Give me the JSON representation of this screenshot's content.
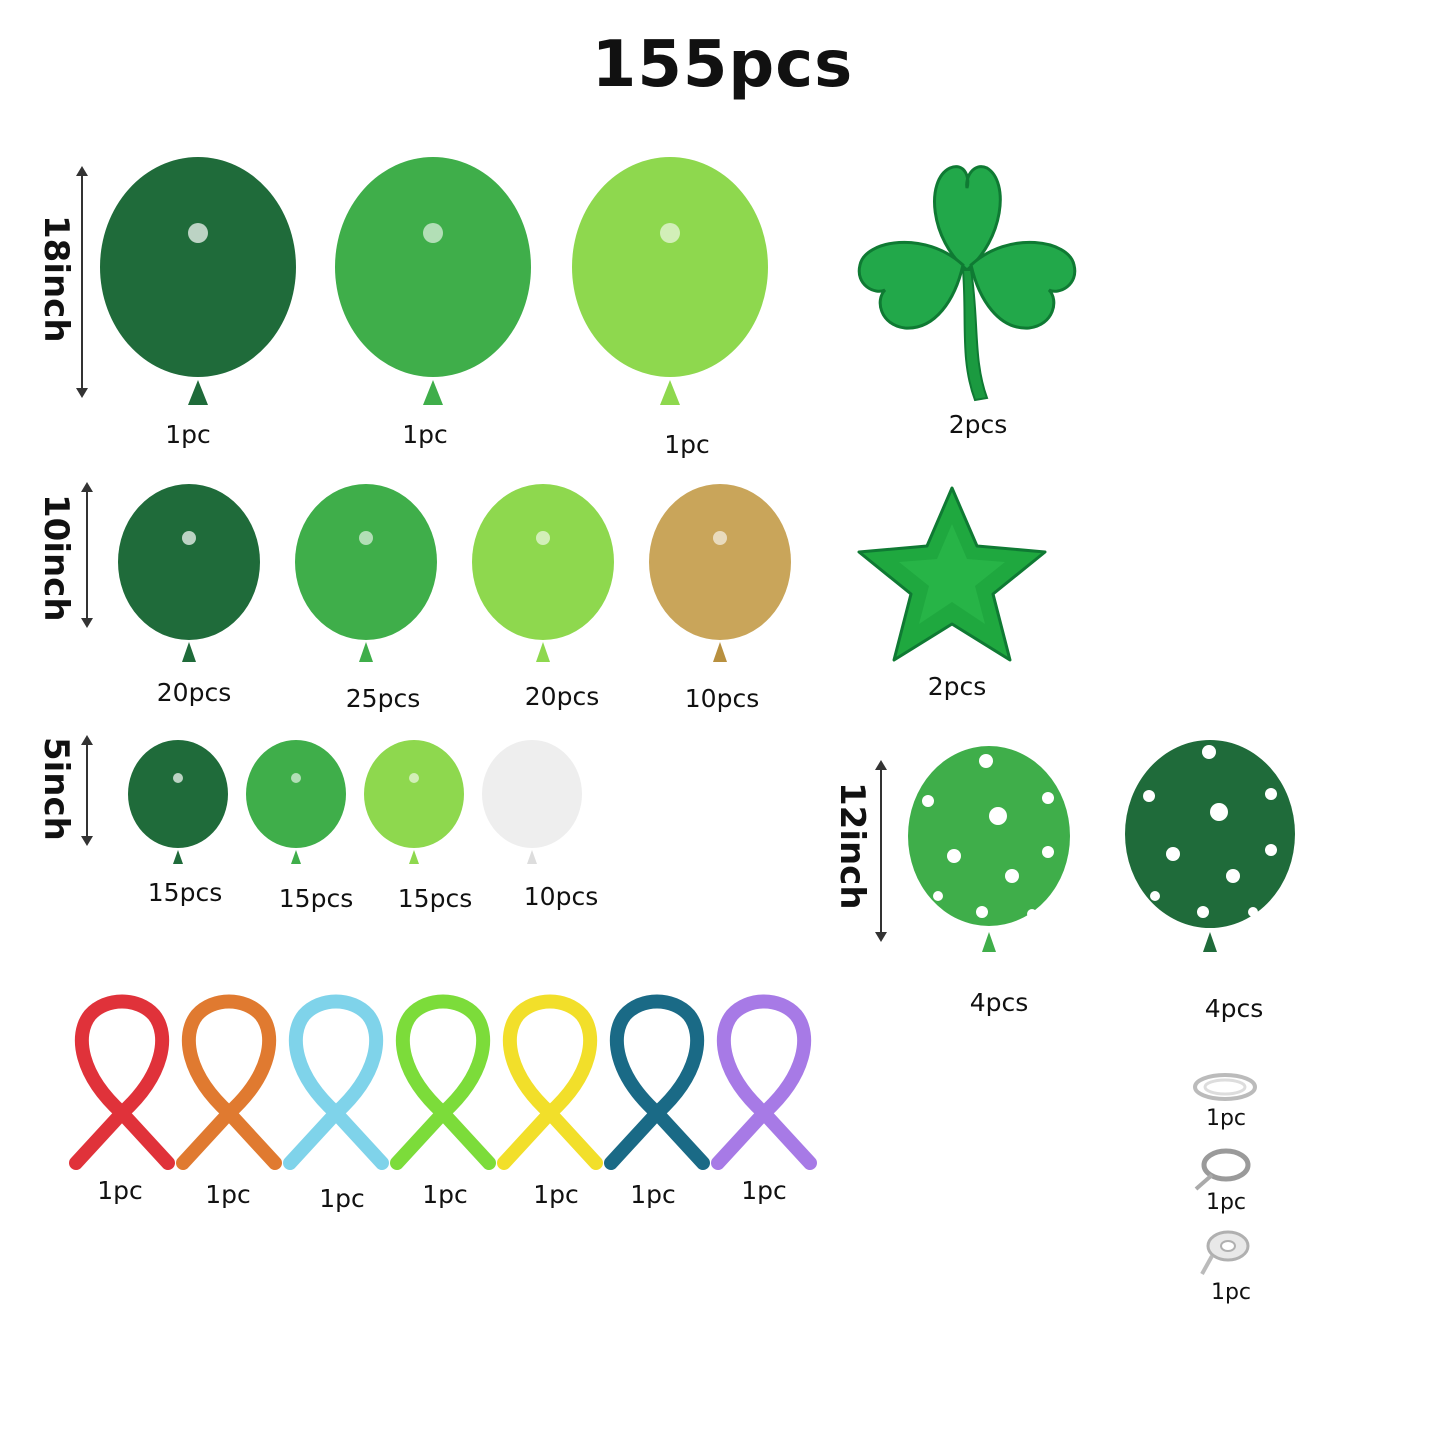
{
  "title": "155pcs",
  "sizes": {
    "s18": "18inch",
    "s10": "10inch",
    "s5": "5inch",
    "s12": "12inch"
  },
  "colors": {
    "dark_green": "#1f6b3a",
    "green": "#3fae4a",
    "light_green": "#8ed84e",
    "gold": "#c9a55a",
    "white": "#eeeeee",
    "foil_green": "#22a84a"
  },
  "row18": [
    "1pc",
    "1pc",
    "1pc"
  ],
  "shamrock_label": "2pcs",
  "row10": [
    "20pcs",
    "25pcs",
    "20pcs",
    "10pcs"
  ],
  "star_label": "2pcs",
  "row5": [
    "15pcs",
    "15pcs",
    "15pcs",
    "10pcs"
  ],
  "row12": [
    "4pcs",
    "4pcs"
  ],
  "long_balloons": {
    "colors": [
      "#e0323a",
      "#e07a30",
      "#7fd3ea",
      "#7cdc3a",
      "#f2df2a",
      "#1a6a86",
      "#a77ae6"
    ],
    "labels": [
      "1pc",
      "1pc",
      "1pc",
      "1pc",
      "1pc",
      "1pc",
      "1pc"
    ]
  },
  "accessories": [
    "1pc",
    "1pc",
    "1pc"
  ]
}
